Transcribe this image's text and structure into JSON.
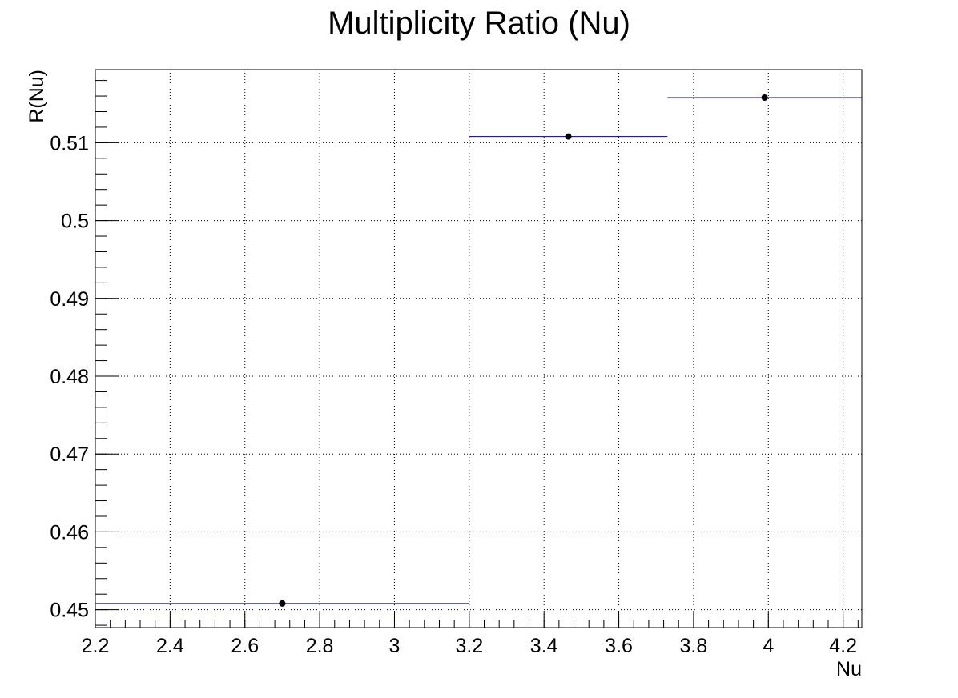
{
  "chart_data": {
    "type": "scatter",
    "title": "Multiplicity Ratio (Nu)",
    "xlabel": "Nu",
    "ylabel": "R(Nu)",
    "xlim": [
      2.2,
      4.25
    ],
    "ylim": [
      0.4477,
      0.5194
    ],
    "grid": true,
    "x_ticks": [
      "2.2",
      "2.4",
      "2.6",
      "2.8",
      "3",
      "3.2",
      "3.4",
      "3.6",
      "3.8",
      "4",
      "4.2"
    ],
    "y_ticks": [
      "0.45",
      "0.46",
      "0.47",
      "0.48",
      "0.49",
      "0.5",
      "0.51"
    ],
    "series": [
      {
        "points": [
          {
            "x": 2.7,
            "y": 0.4508,
            "xlow": 2.2,
            "xhigh": 3.2
          },
          {
            "x": 3.465,
            "y": 0.5108,
            "xlow": 3.2,
            "xhigh": 3.73
          },
          {
            "x": 3.99,
            "y": 0.5158,
            "xlow": 3.73,
            "xhigh": 4.25
          }
        ],
        "marker_color": "#000000",
        "error_bar_color": "#000080"
      }
    ]
  }
}
